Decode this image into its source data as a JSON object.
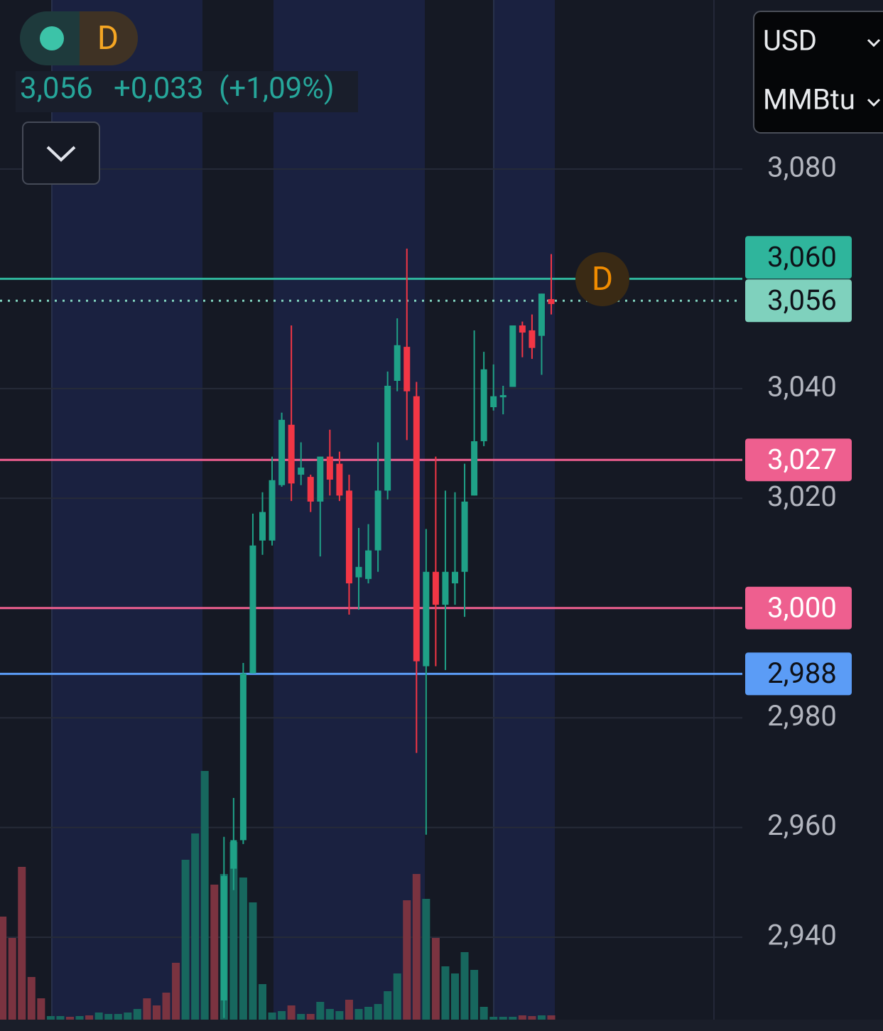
{
  "header": {
    "badge": "D",
    "price": "3,056",
    "change": "+0,033",
    "change_pct": "(+1,09%)",
    "currency": "USD",
    "unit": "MMBtu"
  },
  "chart_data": {
    "type": "candlestick",
    "ylim": [
      2.925,
      3.1108
    ],
    "yticks": [
      {
        "value": 3.08,
        "label": "3,080"
      },
      {
        "value": 3.04,
        "label": "3,040"
      },
      {
        "value": 3.02,
        "label": "3,020"
      },
      {
        "value": 2.98,
        "label": "2,980"
      },
      {
        "value": 2.96,
        "label": "2,960"
      },
      {
        "value": 2.94,
        "label": "2,940"
      }
    ],
    "grid": true,
    "up_color": "#1fa187",
    "down_color": "#f23645",
    "candles": {
      "open": [
        2.9285,
        2.9525,
        2.9577,
        2.9881,
        3.0123,
        3.0123,
        3.0224,
        3.0334,
        3.0243,
        3.0239,
        3.0194,
        3.0276,
        3.0263,
        3.0214,
        3.0056,
        3.0053,
        3.0105,
        3.0214,
        3.0414,
        3.0476,
        3.0386,
        2.9894,
        3.0066,
        3.0006,
        3.0045,
        3.0066,
        3.0205,
        3.0304,
        3.0366,
        3.0384,
        3.0403,
        3.0515,
        3.0506,
        3.0496,
        3.0563
      ],
      "high": [
        2.9583,
        2.9654,
        2.99,
        3.0172,
        3.0211,
        3.0276,
        3.0356,
        3.0515,
        3.0302,
        3.0243,
        3.0276,
        3.0325,
        3.0285,
        3.0243,
        3.0146,
        3.0153,
        3.0302,
        3.0431,
        3.0528,
        3.0655,
        3.0412,
        3.0144,
        3.0276,
        3.0214,
        3.0211,
        3.0263,
        3.0506,
        3.0467,
        3.0444,
        3.0405,
        3.0515,
        3.0522,
        3.0535,
        3.0573,
        3.0645
      ],
      "low": [
        2.9253,
        2.9486,
        2.957,
        2.9881,
        3.0097,
        3.0114,
        3.0221,
        3.0195,
        3.0224,
        3.0175,
        3.0094,
        3.0205,
        3.0195,
        2.9988,
        2.9997,
        3.0045,
        3.0066,
        3.0198,
        3.0395,
        3.0306,
        2.9736,
        2.9587,
        2.9894,
        2.9887,
        3.0006,
        2.9984,
        3.0205,
        3.0295,
        3.036,
        3.0353,
        3.0403,
        3.0457,
        3.0454,
        3.0425,
        3.0535
      ],
      "close": [
        2.9512,
        2.9577,
        2.9881,
        3.0114,
        3.0175,
        3.0233,
        3.0343,
        3.0227,
        3.0256,
        3.0194,
        3.0276,
        3.0234,
        3.0205,
        3.0045,
        3.0075,
        3.0105,
        3.0214,
        3.0405,
        3.0479,
        3.0395,
        2.9903,
        3.0066,
        3.0006,
        3.0066,
        3.0066,
        3.0194,
        3.0304,
        3.0435,
        3.0386,
        3.0388,
        3.0515,
        3.0502,
        3.0474,
        3.0573,
        3.0554
      ]
    },
    "volume": {
      "values": [
        145,
        115,
        215,
        60,
        30,
        5,
        5,
        4,
        5,
        6,
        10,
        8,
        8,
        10,
        15,
        30,
        20,
        38,
        80,
        225,
        262,
        350,
        190,
        205,
        250,
        200,
        165,
        50,
        10,
        12,
        20,
        8,
        8,
        25,
        15,
        12,
        28,
        15,
        18,
        22,
        40,
        65,
        168,
        205,
        170,
        115,
        75,
        65,
        95,
        70,
        18,
        4,
        4,
        4,
        6,
        5,
        6,
        6
      ],
      "colors": [
        "#7a3340",
        "#7a3340",
        "#7a3340",
        "#7a3340",
        "#7a3340",
        "#17675e",
        "#17675e",
        "#7a3340",
        "#17675e",
        "#7a3340",
        "#17675e",
        "#17675e",
        "#17675e",
        "#17675e",
        "#17675e",
        "#7a3340",
        "#7a3340",
        "#7a3340",
        "#7a3340",
        "#17675e",
        "#17675e",
        "#17675e",
        "#7a3340",
        "#17675e",
        "#17675e",
        "#17675e",
        "#17675e",
        "#17675e",
        "#17675e",
        "#17675e",
        "#7a3340",
        "#17675e",
        "#7a3340",
        "#17675e",
        "#17675e",
        "#17675e",
        "#7a3340",
        "#17675e",
        "#17675e",
        "#17675e",
        "#17675e",
        "#17675e",
        "#7a3340",
        "#7a3340",
        "#17675e",
        "#7a3340",
        "#17675e",
        "#17675e",
        "#17675e",
        "#17675e",
        "#17675e",
        "#17675e",
        "#17675e",
        "#17675e",
        "#7a3340",
        "#7a3340",
        "#17675e",
        "#7a3340"
      ]
    },
    "levels": [
      {
        "value": 3.06,
        "label": "3,060",
        "color": "#2fb59c",
        "style": "solid"
      },
      {
        "value": 3.056,
        "label": "3,056",
        "color": "#7fd1bd",
        "style": "dotted"
      },
      {
        "value": 3.027,
        "label": "3,027",
        "color": "#ee5f8f",
        "style": "solid"
      },
      {
        "value": 3.0,
        "label": "3,000",
        "color": "#ee5f8f",
        "style": "solid"
      },
      {
        "value": 2.988,
        "label": "2,988",
        "color": "#5b9cf6",
        "style": "solid"
      }
    ]
  }
}
